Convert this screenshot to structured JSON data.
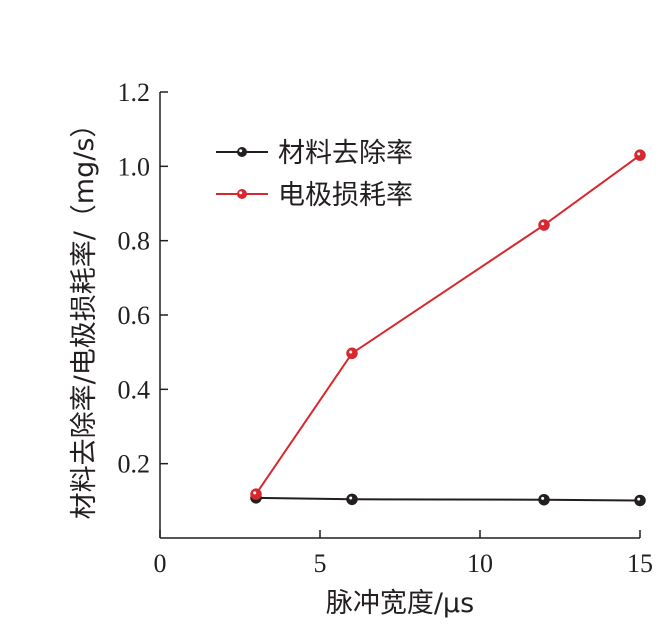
{
  "chart_data": {
    "type": "line",
    "title": "",
    "xlabel": "脉冲宽度/μs",
    "ylabel": "材料去除率/电极损耗率/（mg/s）",
    "xlim": [
      0,
      15
    ],
    "ylim": [
      0,
      1.2
    ],
    "x_ticks": [
      "0",
      "5",
      "10",
      "15"
    ],
    "y_ticks": [
      "0.2",
      "0.4",
      "0.6",
      "0.8",
      "1.0",
      "1.2"
    ],
    "grid": false,
    "legend_position": "top-left",
    "series": [
      {
        "name": "材料去除率",
        "color": "#231f20",
        "x": [
          3,
          6,
          12,
          15
        ],
        "y": [
          0.108,
          0.104,
          0.103,
          0.101
        ]
      },
      {
        "name": "电极损耗率",
        "color": "#d7282f",
        "x": [
          3,
          6,
          12,
          15
        ],
        "y": [
          0.118,
          0.497,
          0.842,
          1.03
        ]
      }
    ]
  }
}
